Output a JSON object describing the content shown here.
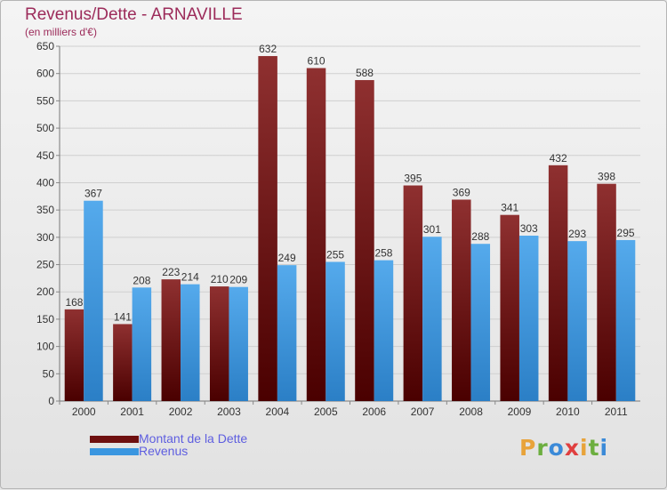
{
  "chart": {
    "title": "Revenus/Dette - ARNAVILLE",
    "subtitle": "(en milliers d'€)"
  },
  "colors": {
    "dette": "#7a1212",
    "revenus": "#4aa2e8",
    "title": "#9c2b5a",
    "legend_text": "#5e5ee0"
  },
  "legend": [
    {
      "label": "Montant de la Dette",
      "color": "#6e0f0f"
    },
    {
      "label": "Revenus",
      "color": "#3a96e0"
    }
  ],
  "logo": {
    "letters": [
      {
        "ch": "P",
        "color": "#e8a33a"
      },
      {
        "ch": "r",
        "color": "#6cae3f"
      },
      {
        "ch": "o",
        "color": "#3b8ad8"
      },
      {
        "ch": "x",
        "color": "#e03f3f"
      },
      {
        "ch": "i",
        "color": "#e8a33a"
      },
      {
        "ch": "t",
        "color": "#6cae3f"
      },
      {
        "ch": "i",
        "color": "#3b8ad8"
      }
    ]
  },
  "chart_data": {
    "type": "bar",
    "categories": [
      "2000",
      "2001",
      "2002",
      "2003",
      "2004",
      "2005",
      "2006",
      "2007",
      "2008",
      "2009",
      "2010",
      "2011"
    ],
    "series": [
      {
        "name": "Montant de la Dette",
        "values": [
          168,
          141,
          223,
          210,
          632,
          610,
          588,
          395,
          369,
          341,
          432,
          398
        ]
      },
      {
        "name": "Revenus",
        "values": [
          367,
          208,
          214,
          209,
          249,
          255,
          258,
          301,
          288,
          303,
          293,
          295
        ]
      }
    ],
    "ylim": [
      0,
      650
    ],
    "yticks": [
      0,
      50,
      100,
      150,
      200,
      250,
      300,
      350,
      400,
      450,
      500,
      550,
      600,
      650
    ],
    "grid": true,
    "legend_position": "bottom-left"
  }
}
